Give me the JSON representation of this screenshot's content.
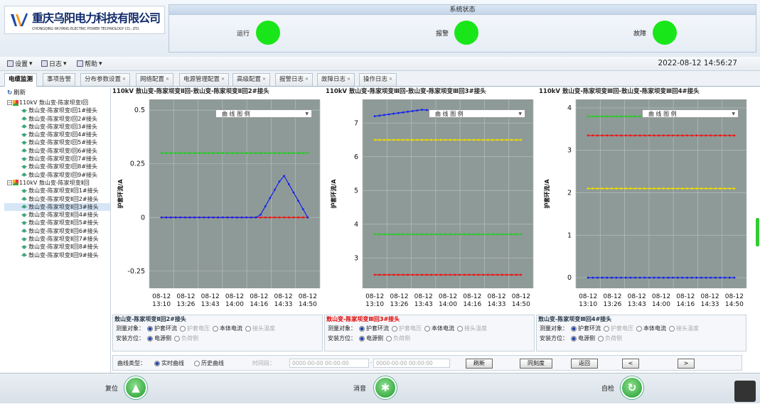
{
  "logo": {
    "name_cn": "重庆乌阳电力科技有限公司",
    "name_en": "CHONGQING WUYANG ELECTRIC POWER TECHNOLOGY CO., LTD."
  },
  "status": {
    "title": "系统状态",
    "items": [
      {
        "label": "运行",
        "color": "#19e619"
      },
      {
        "label": "报警",
        "color": "#19e619"
      },
      {
        "label": "故障",
        "color": "#19e619"
      }
    ]
  },
  "menu": {
    "items": [
      {
        "label": "设置"
      },
      {
        "label": "日志"
      },
      {
        "label": "帮助"
      }
    ],
    "datetime": "2022-08-12 14:56:27"
  },
  "tabs": [
    {
      "label": "电缆监测",
      "active": true
    },
    {
      "label": "事项告警"
    },
    {
      "label": "分布参数设置"
    },
    {
      "label": "网络配置"
    },
    {
      "label": "电源管理配置"
    },
    {
      "label": "高级配置"
    },
    {
      "label": "报警日志"
    },
    {
      "label": "故障日志"
    },
    {
      "label": "操作日志"
    }
  ],
  "tree": {
    "refresh_label": "刷新",
    "groups": [
      {
        "label": "110kV 敖山变-陈家坝变Ⅰ回",
        "children": [
          "敖山变-陈家坝变Ⅰ回1#接头",
          "敖山变-陈家坝变Ⅰ回2#接头",
          "敖山变-陈家坝变Ⅰ回3#接头",
          "敖山变-陈家坝变Ⅰ回4#接头",
          "敖山变-陈家坝变Ⅰ回5#接头",
          "敖山变-陈家坝变Ⅰ回6#接头",
          "敖山变-陈家坝变Ⅰ回7#接头",
          "敖山变-陈家坝变Ⅰ回8#接头",
          "敖山变-陈家坝变Ⅰ回9#接头"
        ]
      },
      {
        "label": "110kV 敖山变-陈家坝变Ⅱ回",
        "children": [
          "敖山变-陈家坝变Ⅱ回1#接头",
          "敖山变-陈家坝变Ⅱ回2#接头",
          "敖山变-陈家坝变Ⅱ回3#接头",
          "敖山变-陈家坝变Ⅱ回4#接头",
          "敖山变-陈家坝变Ⅱ回5#接头",
          "敖山变-陈家坝变Ⅱ回6#接头",
          "敖山变-陈家坝变Ⅱ回7#接头",
          "敖山变-陈家坝变Ⅱ回8#接头",
          "敖山变-陈家坝变Ⅱ回9#接头"
        ]
      }
    ],
    "selected": "敖山变-陈家坝变Ⅱ回3#接头"
  },
  "chart_data": [
    {
      "type": "line",
      "title": "110kV 敖山变-陈家坝变Ⅱ回-敖山变-陈家坝变Ⅱ回2#接头",
      "ylabel": "护套环流/A",
      "legend_label": "曲 线 图 例",
      "ylim": [
        -0.33,
        0.55
      ],
      "yticks": [
        0.5,
        0.25,
        0,
        -0.25
      ],
      "categories": [
        "08-12 13:10",
        "08-12 13:26",
        "08-12 13:43",
        "08-12 14:00",
        "08-12 14:16",
        "08-12 14:33",
        "08-12 14:50"
      ],
      "series": [
        {
          "color": "#22cc22",
          "values": [
            0.3,
            0.3,
            0.3,
            0.3,
            0.3,
            0.3,
            0.3
          ]
        },
        {
          "color": "#ee1111",
          "values": [
            0,
            0,
            0,
            0,
            0,
            0,
            0
          ]
        },
        {
          "color": "#1122ee",
          "values": [
            0,
            0,
            0,
            0,
            0,
            0.2,
            0
          ]
        }
      ]
    },
    {
      "type": "line",
      "title": "110kV 敖山变-陈家坝变Ⅲ回-敖山变-陈家坝变Ⅲ回3#接头",
      "ylabel": "护套环流/A",
      "legend_label": "曲 线 图 例",
      "ylim": [
        2.1,
        7.7
      ],
      "yticks": [
        7,
        6,
        5,
        4,
        3
      ],
      "categories": [
        "08-12 13:10",
        "08-12 13:26",
        "08-12 13:43",
        "08-12 14:00",
        "08-12 14:16",
        "08-12 14:33",
        "08-12 14:50"
      ],
      "series": [
        {
          "color": "#1122ee",
          "values": [
            7.2,
            7.3,
            7.4,
            7.3,
            7.2,
            7.3,
            7.2
          ]
        },
        {
          "color": "#eedd00",
          "values": [
            6.5,
            6.5,
            6.5,
            6.5,
            6.5,
            6.5,
            6.5
          ]
        },
        {
          "color": "#22cc22",
          "values": [
            3.7,
            3.7,
            3.7,
            3.7,
            3.7,
            3.7,
            3.7
          ]
        },
        {
          "color": "#ee1111",
          "values": [
            2.5,
            2.5,
            2.5,
            2.5,
            2.5,
            2.5,
            2.5
          ]
        }
      ]
    },
    {
      "type": "line",
      "title": "110kV 敖山变-陈家坝变Ⅲ回-敖山变-陈家坝变Ⅲ回4#接头",
      "ylabel": "护套环流/A",
      "legend_label": "曲 线 图 例",
      "ylim": [
        -0.25,
        4.2
      ],
      "yticks": [
        4,
        3,
        2,
        1,
        0
      ],
      "categories": [
        "08-12 13:10",
        "08-12 13:26",
        "08-12 13:43",
        "08-12 14:00",
        "08-12 14:16",
        "08-12 14:33",
        "08-12 14:50"
      ],
      "series": [
        {
          "color": "#22cc22",
          "values": [
            3.8,
            3.8,
            3.8,
            3.8,
            3.8,
            3.8,
            3.8
          ]
        },
        {
          "color": "#ee1111",
          "values": [
            3.35,
            3.35,
            3.35,
            3.35,
            3.35,
            3.35,
            3.35
          ]
        },
        {
          "color": "#eedd00",
          "values": [
            2.1,
            2.1,
            2.1,
            2.1,
            2.1,
            2.1,
            2.1
          ]
        },
        {
          "color": "#1122ee",
          "values": [
            0,
            0,
            0,
            0,
            0,
            0,
            0
          ]
        }
      ]
    }
  ],
  "panels": [
    {
      "title": "敖山变-陈家坝变Ⅱ回2#接头",
      "title_red": false
    },
    {
      "title": "敖山变-陈家坝变Ⅲ回3#接头",
      "title_red": true
    },
    {
      "title": "敖山变-陈家坝变Ⅲ回4#接头",
      "title_red": false
    }
  ],
  "panel_labels": {
    "measure": "测量对象：",
    "measure_opts": [
      "护套环流",
      "护套电压",
      "本体电流",
      "接头温度"
    ],
    "install": "安装方位：",
    "install_opts": [
      "电源侧",
      "负荷侧"
    ]
  },
  "controls": {
    "curve_type": "曲线类型：",
    "realtime": "实时曲线",
    "history": "历史曲线",
    "period": "时间段：",
    "start": "0000-00-00 00:00:00",
    "sep": "-",
    "end": "0000-00-00 00:00:00",
    "refresh": "刷新",
    "same_scale": "同刻度",
    "back": "返回",
    "prev": "<",
    "next": ">"
  },
  "footer": {
    "reset": "复位",
    "mute": "消音",
    "selfcheck": "自检"
  }
}
